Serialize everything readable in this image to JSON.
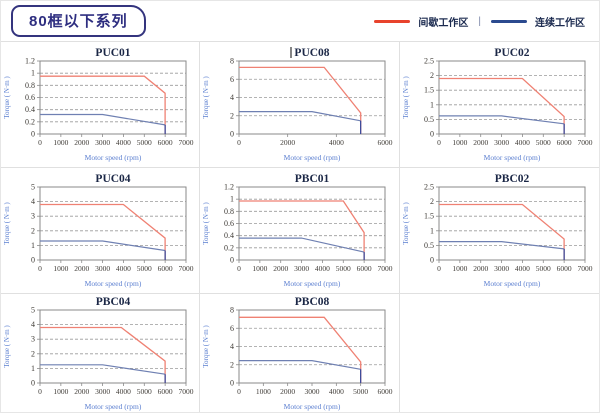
{
  "header": {
    "title": "80框以下系列",
    "legend": {
      "intermittent_label": "间歇工作区",
      "separator": "|",
      "continuous_label": "连续工作区",
      "intermittent_color": "#e8432c",
      "continuous_color": "#2b4a8f"
    }
  },
  "axis": {
    "xlabel": "Motor speed (rpm)",
    "ylabel": "Torque ( N·m )"
  },
  "colors": {
    "red_line": "#ef8173",
    "blue_line": "#6f80b2",
    "blue_drop": "#31479c",
    "grid_dash": "#9a9a9a",
    "plot_border": "#8a8a8a",
    "tick_text": "#3f3b36",
    "axis_label_text": "#5b7fd0",
    "chart_title_text": "#1b2746",
    "cell_border": "#e0e0e0"
  },
  "chart_data": [
    {
      "type": "line",
      "title": "PUC01",
      "caret": false,
      "xlabel": "Motor speed (rpm)",
      "ylabel": "Torque ( N·m )",
      "xlim": [
        0,
        7000
      ],
      "ylim": [
        0,
        1.2
      ],
      "ystep": 0.2,
      "xticks": [
        0,
        1000,
        2000,
        3000,
        4000,
        5000,
        6000,
        7000
      ],
      "series": [
        {
          "name": "间歇工作区",
          "role": "red",
          "points": [
            [
              0,
              0.95
            ],
            [
              5000,
              0.95
            ],
            [
              6000,
              0.67
            ],
            [
              6000,
              0
            ]
          ]
        },
        {
          "name": "连续工作区",
          "role": "blue",
          "points": [
            [
              0,
              0.32
            ],
            [
              3000,
              0.32
            ],
            [
              6000,
              0.15
            ],
            [
              6000,
              0
            ]
          ]
        }
      ]
    },
    {
      "type": "line",
      "title": "PUC08",
      "caret": true,
      "xlabel": "Motor speed (rpm)",
      "ylabel": "Torque ( N·m )",
      "xlim": [
        0,
        6000
      ],
      "ylim": [
        0,
        8
      ],
      "ystep": 2,
      "xticks": [
        0,
        2000,
        4000,
        6000
      ],
      "series": [
        {
          "name": "间歇工作区",
          "role": "red",
          "points": [
            [
              0,
              7.3
            ],
            [
              3500,
              7.3
            ],
            [
              5000,
              2.3
            ],
            [
              5000,
              0
            ]
          ]
        },
        {
          "name": "连续工作区",
          "role": "blue",
          "points": [
            [
              0,
              2.45
            ],
            [
              3000,
              2.45
            ],
            [
              5000,
              1.45
            ],
            [
              5000,
              0
            ]
          ]
        }
      ]
    },
    {
      "type": "line",
      "title": "PUC02",
      "caret": false,
      "xlabel": "Motor speed (rpm)",
      "ylabel": "Torque ( N·m )",
      "xlim": [
        0,
        7000
      ],
      "ylim": [
        0,
        2.5
      ],
      "ystep": 0.5,
      "xticks": [
        0,
        1000,
        2000,
        3000,
        4000,
        5000,
        6000,
        7000
      ],
      "series": [
        {
          "name": "间歇工作区",
          "role": "red",
          "points": [
            [
              0,
              1.9
            ],
            [
              4000,
              1.9
            ],
            [
              6000,
              0.6
            ],
            [
              6000,
              0
            ]
          ]
        },
        {
          "name": "连续工作区",
          "role": "blue",
          "points": [
            [
              0,
              0.62
            ],
            [
              3000,
              0.62
            ],
            [
              6000,
              0.35
            ],
            [
              6000,
              0
            ]
          ]
        }
      ]
    },
    {
      "type": "line",
      "title": "PUC04",
      "caret": false,
      "xlabel": "Motor speed (rpm)",
      "ylabel": "Torque ( N·m )",
      "xlim": [
        0,
        7000
      ],
      "ylim": [
        0,
        5
      ],
      "ystep": 1,
      "xticks": [
        0,
        1000,
        2000,
        3000,
        4000,
        5000,
        6000,
        7000
      ],
      "series": [
        {
          "name": "间歇工作区",
          "role": "red",
          "points": [
            [
              0,
              3.8
            ],
            [
              4000,
              3.8
            ],
            [
              6000,
              1.5
            ],
            [
              6000,
              0
            ]
          ]
        },
        {
          "name": "连续工作区",
          "role": "blue",
          "points": [
            [
              0,
              1.3
            ],
            [
              3000,
              1.3
            ],
            [
              6000,
              0.65
            ],
            [
              6000,
              0
            ]
          ]
        }
      ]
    },
    {
      "type": "line",
      "title": "PBC01",
      "caret": false,
      "xlabel": "Motor speed (rpm)",
      "ylabel": "Torque ( N·m )",
      "xlim": [
        0,
        7000
      ],
      "ylim": [
        0,
        1.2
      ],
      "ystep": 0.2,
      "xticks": [
        0,
        1000,
        2000,
        3000,
        4000,
        5000,
        6000,
        7000
      ],
      "series": [
        {
          "name": "间歇工作区",
          "role": "red",
          "points": [
            [
              0,
              0.97
            ],
            [
              5000,
              0.97
            ],
            [
              6000,
              0.45
            ],
            [
              6000,
              0
            ]
          ]
        },
        {
          "name": "连续工作区",
          "role": "blue",
          "points": [
            [
              0,
              0.36
            ],
            [
              3000,
              0.36
            ],
            [
              6000,
              0.13
            ],
            [
              6000,
              0
            ]
          ]
        }
      ]
    },
    {
      "type": "line",
      "title": "PBC02",
      "caret": false,
      "xlabel": "Motor speed (rpm)",
      "ylabel": "Torque ( N·m )",
      "xlim": [
        0,
        7000
      ],
      "ylim": [
        0,
        2.5
      ],
      "ystep": 0.5,
      "xticks": [
        0,
        1000,
        2000,
        3000,
        4000,
        5000,
        6000,
        7000
      ],
      "series": [
        {
          "name": "间歇工作区",
          "role": "red",
          "points": [
            [
              0,
              1.9
            ],
            [
              4000,
              1.9
            ],
            [
              6000,
              0.72
            ],
            [
              6000,
              0
            ]
          ]
        },
        {
          "name": "连续工作区",
          "role": "blue",
          "points": [
            [
              0,
              0.63
            ],
            [
              3000,
              0.63
            ],
            [
              6000,
              0.38
            ],
            [
              6000,
              0
            ]
          ]
        }
      ]
    },
    {
      "type": "line",
      "title": "PBC04",
      "caret": false,
      "xlabel": "Motor speed (rpm)",
      "ylabel": "Torque ( N·m )",
      "xlim": [
        0,
        7000
      ],
      "ylim": [
        0,
        5
      ],
      "ystep": 1,
      "xticks": [
        0,
        1000,
        2000,
        3000,
        4000,
        5000,
        6000,
        7000
      ],
      "series": [
        {
          "name": "间歇工作区",
          "role": "red",
          "points": [
            [
              0,
              3.8
            ],
            [
              3900,
              3.8
            ],
            [
              6000,
              1.5
            ],
            [
              6000,
              0
            ]
          ]
        },
        {
          "name": "连续工作区",
          "role": "blue",
          "points": [
            [
              0,
              1.25
            ],
            [
              3000,
              1.25
            ],
            [
              6000,
              0.6
            ],
            [
              6000,
              0
            ]
          ]
        }
      ]
    },
    {
      "type": "line",
      "title": "PBC08",
      "caret": false,
      "xlabel": "Motor speed (rpm)",
      "ylabel": "Torque ( N·m )",
      "xlim": [
        0,
        6000
      ],
      "ylim": [
        0,
        8
      ],
      "ystep": 2,
      "xticks": [
        0,
        1000,
        2000,
        3000,
        4000,
        5000,
        6000
      ],
      "series": [
        {
          "name": "间歇工作区",
          "role": "red",
          "points": [
            [
              0,
              7.2
            ],
            [
              3500,
              7.2
            ],
            [
              5000,
              2.3
            ],
            [
              5000,
              0
            ]
          ]
        },
        {
          "name": "连续工作区",
          "role": "blue",
          "points": [
            [
              0,
              2.45
            ],
            [
              3000,
              2.45
            ],
            [
              5000,
              1.5
            ],
            [
              5000,
              0
            ]
          ]
        }
      ]
    }
  ]
}
